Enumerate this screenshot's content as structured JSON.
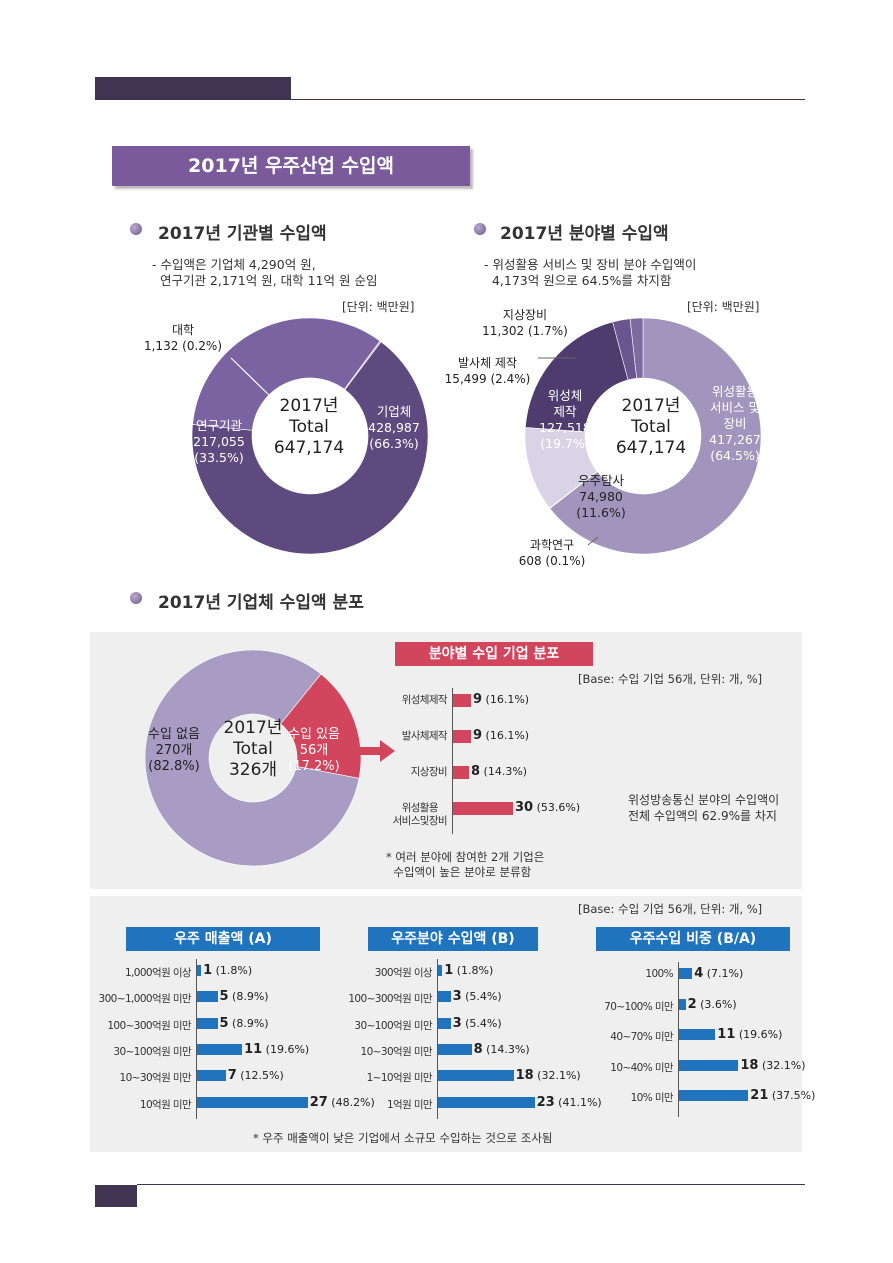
{
  "banner_title": "2017년 우주산업 수입액",
  "left_section": {
    "title": "2017년 기관별 수입액",
    "desc": "- 수입액은 기업체 4,290억 원,\n  연구기관 2,171억 원, 대학 11억 원 순임",
    "unit": "[단위: 백만원]",
    "center": "2017년\nTotal\n647,174",
    "labels": {
      "univ": "대학\n1,132 (0.2%)",
      "research": "연구기관\n217,055\n(33.5%)",
      "company": "기업체\n428,987\n(66.3%)"
    }
  },
  "right_section": {
    "title": "2017년 분야별 수입액",
    "desc": "- 위성활용 서비스 및 장비 분야 수입액이\n  4,173억 원으로 64.5%를 차지함",
    "unit": "[단위: 백만원]",
    "center": "2017년\nTotal\n647,174",
    "labels": {
      "ground": "지상장비\n11,302 (1.7%)",
      "launch": "발사체 제작\n15,499 (2.4%)",
      "satmfg": "위성체\n제작\n127,518\n(19.7%)",
      "satuse": "위성활용\n서비스 및\n장비\n417,267\n(64.5%)",
      "explore": "우주탐사\n74,980\n(11.6%)",
      "science": "과학연구\n608 (0.1%)"
    }
  },
  "dist_section": {
    "title": "2017년 기업체 수입액 분포",
    "center": "2017년\nTotal\n326개",
    "no_label": "수입 없음\n270개\n(82.8%)",
    "yes_label": "수입 있음\n56개\n(17.2%)",
    "field_title": "분야별 수입 기업 분포",
    "base": "[Base: 수입 기업 56개, 단위: 개, %]",
    "note": "* 여러 분야에 참여한 2개 기업은\n  수입액이 높은 분야로 분류함",
    "side_note": "위성방송통신 분야의 수입액이\n전체 수입액의 62.9%를 차지"
  },
  "bottom_section": {
    "base": "[Base: 수입 기업 56개, 단위: 개, %]",
    "chart_a_title": "우주 매출액 (A)",
    "chart_b_title": "우주분야 수입액 (B)",
    "chart_c_title": "우주수입 비중 (B/A)",
    "footnote": "* 우주 매출액이 낮은 기업에서 소규모 수입하는 것으로 조사됨"
  },
  "chart_data": [
    {
      "type": "pie",
      "title": "2017년 기관별 수입액",
      "categories": [
        "기업체",
        "연구기관",
        "대학"
      ],
      "values": [
        428987,
        217055,
        1132
      ],
      "percent": [
        66.3,
        33.5,
        0.2
      ],
      "colors": [
        "#5e4a7e",
        "#7b63a2",
        "#b3a6c9"
      ]
    },
    {
      "type": "pie",
      "title": "2017년 분야별 수입액",
      "categories": [
        "위성활용 서비스 및 장비",
        "과학연구",
        "우주탐사",
        "위성체 제작",
        "발사체 제작",
        "지상장비"
      ],
      "values": [
        417267,
        608,
        74980,
        127518,
        15499,
        11302
      ],
      "percent": [
        64.5,
        0.1,
        11.6,
        19.7,
        2.4,
        1.7
      ],
      "colors": [
        "#a295bd",
        "#c9c4d9",
        "#d9d3e6",
        "#4f3c6e",
        "#6a5590",
        "#7d6a9e"
      ]
    },
    {
      "type": "pie",
      "title": "2017년 기업체 수입액 분포",
      "categories": [
        "수입 없음",
        "수입 있음"
      ],
      "values": [
        270,
        56
      ],
      "percent": [
        82.8,
        17.2
      ],
      "colors": [
        "#a89cc4",
        "#d2465d"
      ]
    },
    {
      "type": "bar",
      "title": "분야별 수입 기업 분포",
      "categories": [
        "위성체제작",
        "발사체제작",
        "지상장비",
        "위성활용\n서비스및장비"
      ],
      "values": [
        9,
        9,
        8,
        30
      ],
      "percent": [
        16.1,
        16.1,
        14.3,
        53.6
      ],
      "color": "#d2465d"
    },
    {
      "type": "bar",
      "title": "우주 매출액 (A)",
      "categories": [
        "1,000억원 이상",
        "300~1,000억원 미만",
        "100~300억원 미만",
        "30~100억원 미만",
        "10~30억원 미만",
        "10억원 미만"
      ],
      "values": [
        1,
        5,
        5,
        11,
        7,
        27
      ],
      "percent": [
        1.8,
        8.9,
        8.9,
        19.6,
        12.5,
        48.2
      ],
      "color": "#1f74bd"
    },
    {
      "type": "bar",
      "title": "우주분야 수입액 (B)",
      "categories": [
        "300억원 이상",
        "100~300억원 미만",
        "30~100억원 미만",
        "10~30억원 미만",
        "1~10억원 미만",
        "1억원 미만"
      ],
      "values": [
        1,
        3,
        3,
        8,
        18,
        23
      ],
      "percent": [
        1.8,
        5.4,
        5.4,
        14.3,
        32.1,
        41.1
      ],
      "color": "#1f74bd"
    },
    {
      "type": "bar",
      "title": "우주수입 비중 (B/A)",
      "categories": [
        "100%",
        "70~100% 미만",
        "40~70% 미만",
        "10~40% 미만",
        "10% 미만"
      ],
      "values": [
        4,
        2,
        11,
        18,
        21
      ],
      "percent": [
        7.1,
        3.6,
        19.6,
        32.1,
        37.5
      ],
      "color": "#1f74bd"
    }
  ]
}
